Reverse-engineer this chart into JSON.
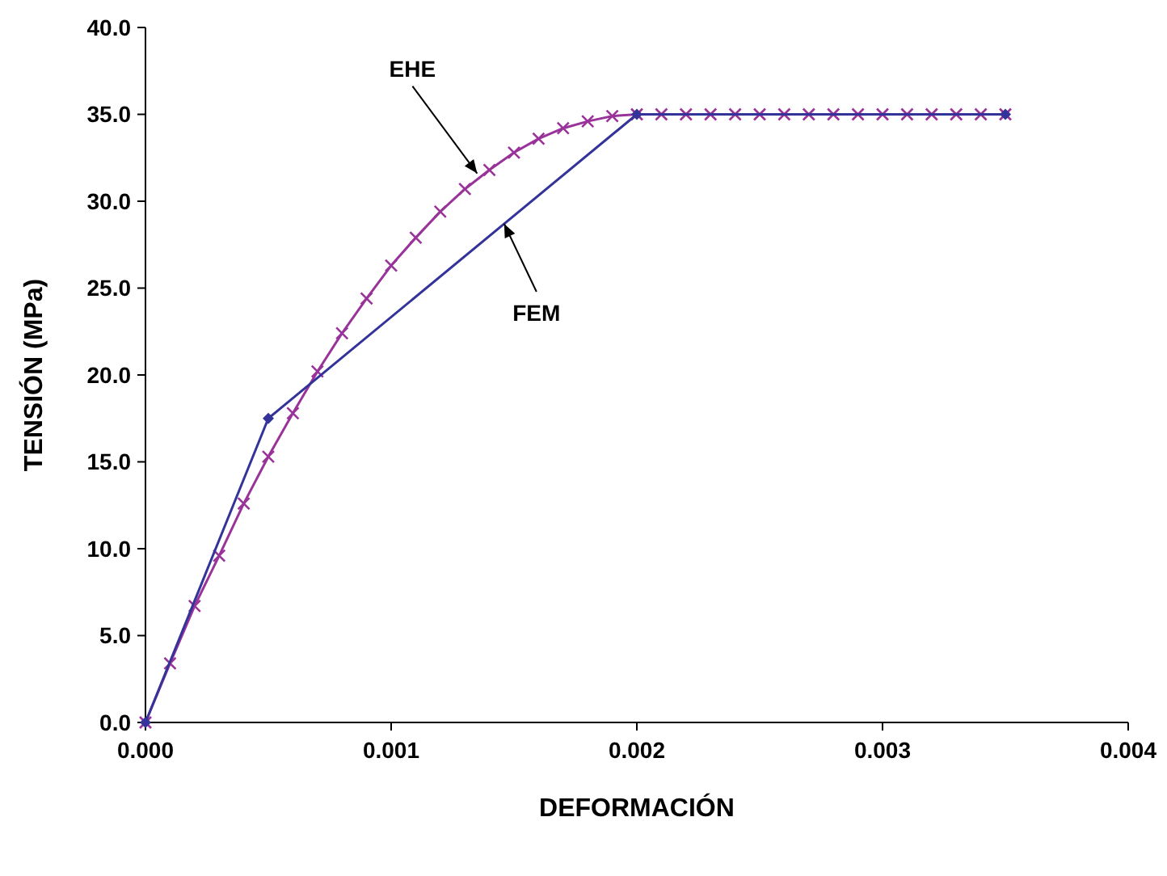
{
  "chart_data": {
    "type": "line",
    "xlabel": "DEFORMACIÓN",
    "ylabel": "TENSIÓN (MPa)",
    "xlim": [
      0,
      0.004
    ],
    "ylim": [
      0,
      40
    ],
    "xticks": [
      {
        "value": 0,
        "label": "0.000"
      },
      {
        "value": 0.001,
        "label": "0.001"
      },
      {
        "value": 0.002,
        "label": "0.002"
      },
      {
        "value": 0.003,
        "label": "0.003"
      },
      {
        "value": 0.004,
        "label": "0.004"
      }
    ],
    "yticks": [
      {
        "value": 0,
        "label": "0.0"
      },
      {
        "value": 5,
        "label": "5.0"
      },
      {
        "value": 10,
        "label": "10.0"
      },
      {
        "value": 15,
        "label": "15.0"
      },
      {
        "value": 20,
        "label": "20.0"
      },
      {
        "value": 25,
        "label": "25.0"
      },
      {
        "value": 30,
        "label": "30.0"
      },
      {
        "value": 35,
        "label": "35.0"
      },
      {
        "value": 40,
        "label": "40.0"
      }
    ],
    "grid": false,
    "series": [
      {
        "color": "#993399",
        "marker": "cross",
        "x": [
          0,
          0.0001,
          0.0002,
          0.0003,
          0.0004,
          0.0005,
          0.0006,
          0.0007,
          0.0008,
          0.0009,
          0.001,
          0.0011,
          0.0012,
          0.0013,
          0.0014,
          0.0015,
          0.0016,
          0.0017,
          0.0018,
          0.0019,
          0.002,
          0.0021,
          0.0022,
          0.0023,
          0.0024,
          0.0025,
          0.0026,
          0.0027,
          0.0028,
          0.0029,
          0.003,
          0.0031,
          0.0032,
          0.0033,
          0.0034,
          0.0035
        ],
        "values": [
          0,
          3.4,
          6.7,
          9.6,
          12.6,
          15.3,
          17.8,
          20.2,
          22.4,
          24.4,
          26.3,
          27.9,
          29.4,
          30.7,
          31.8,
          32.8,
          33.6,
          34.2,
          34.6,
          34.9,
          35,
          35,
          35,
          35,
          35,
          35,
          35,
          35,
          35,
          35,
          35,
          35,
          35,
          35,
          35,
          35
        ]
      },
      {
        "color": "#333399",
        "marker": "diamond",
        "x": [
          0,
          0.0005,
          0.002,
          0.0035
        ],
        "values": [
          0,
          17.5,
          35,
          35
        ]
      }
    ],
    "annotations": [
      {
        "text": "EHE",
        "x": 0.00135,
        "y": 31.6
      },
      {
        "text": "FEM",
        "x": 0.00146,
        "y": 28.7
      }
    ]
  }
}
